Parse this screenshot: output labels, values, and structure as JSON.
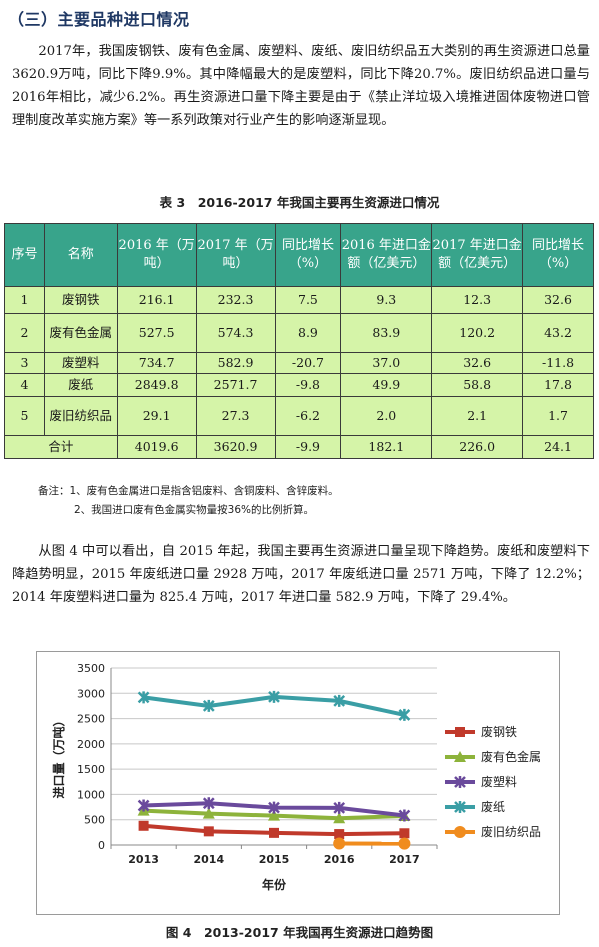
{
  "heading": "（三）主要品种进口情况",
  "para1": "2017年，我国废钢铁、废有色金属、废塑料、废纸、废旧纺织品五大类别的再生资源进口总量3620.9万吨，同比下降9.9%。其中降幅最大的是废塑料，同比下降20.7%。废旧纺织品进口量与2016年相比，减少6.2%。再生资源进口量下降主要是由于《禁止洋垃圾入境推进固体废物进口管理制度改革实施方案》等一系列政策对行业产生的影响逐渐显现。",
  "table_caption": "表 3　2016-2017 年我国主要再生资源进口情况",
  "table": {
    "headers": [
      "序号",
      "名称",
      "2016 年（万吨）",
      "2017 年（万吨）",
      "同比增长（%）",
      "2016 年进口金额（亿美元）",
      "2017 年进口金额（亿美元）",
      "同比增长（%）"
    ],
    "rows": [
      [
        "1",
        "废钢铁",
        "216.1",
        "232.3",
        "7.5",
        "9.3",
        "12.3",
        "32.6"
      ],
      [
        "2",
        "废有色金属",
        "527.5",
        "574.3",
        "8.9",
        "83.9",
        "120.2",
        "43.2"
      ],
      [
        "3",
        "废塑料",
        "734.7",
        "582.9",
        "-20.7",
        "37.0",
        "32.6",
        "-11.8"
      ],
      [
        "4",
        "废纸",
        "2849.8",
        "2571.7",
        "-9.8",
        "49.9",
        "58.8",
        "17.8"
      ],
      [
        "5",
        "废旧纺织品",
        "29.1",
        "27.3",
        "-6.2",
        "2.0",
        "2.1",
        "1.7"
      ]
    ],
    "total": [
      "合计",
      "4019.6",
      "3620.9",
      "-9.9",
      "182.1",
      "226.0",
      "24.1"
    ]
  },
  "notes": [
    "备注：1、废有色金属进口是指含铝废料、含铜废料、含锌废料。",
    "2、我国进口废有色金属实物量按36%的比例折算。"
  ],
  "para2": "从图 4 中可以看出，自 2015 年起，我国主要再生资源进口量呈现下降趋势。废纸和废塑料下降趋势明显，2015 年废纸进口量 2928 万吨，2017 年废纸进口量 2571 万吨，下降了 12.2%；2014 年废塑料进口量为 825.4 万吨，2017 年进口量 582.9 万吨，下降了 29.4%。",
  "chart_data": {
    "type": "line",
    "x": [
      "2013",
      "2014",
      "2015",
      "2016",
      "2017"
    ],
    "ylim": [
      0,
      3500
    ],
    "yticks": [
      0,
      500,
      1000,
      1500,
      2000,
      2500,
      3000,
      3500
    ],
    "xlabel": "年份",
    "ylabel": "进口量（万吨）",
    "grid": "horizontal",
    "legend": "right",
    "series": [
      {
        "name": "废钢铁",
        "color": "#c0392b",
        "marker": "square",
        "values": [
          380,
          270,
          240,
          216,
          232
        ]
      },
      {
        "name": "废有色金属",
        "color": "#8db33b",
        "marker": "triangle",
        "values": [
          680,
          620,
          580,
          528,
          574
        ]
      },
      {
        "name": "废塑料",
        "color": "#6a4a9c",
        "marker": "x",
        "values": [
          780,
          825,
          740,
          735,
          583
        ]
      },
      {
        "name": "废纸",
        "color": "#3a9ea5",
        "marker": "x",
        "values": [
          2920,
          2750,
          2928,
          2850,
          2572
        ]
      },
      {
        "name": "废旧纺织品",
        "color": "#f08c1e",
        "marker": "circle",
        "values": [
          null,
          null,
          null,
          29,
          27
        ]
      }
    ]
  },
  "figure_caption": "图 4　2013-2017 年我国再生资源进口趋势图"
}
